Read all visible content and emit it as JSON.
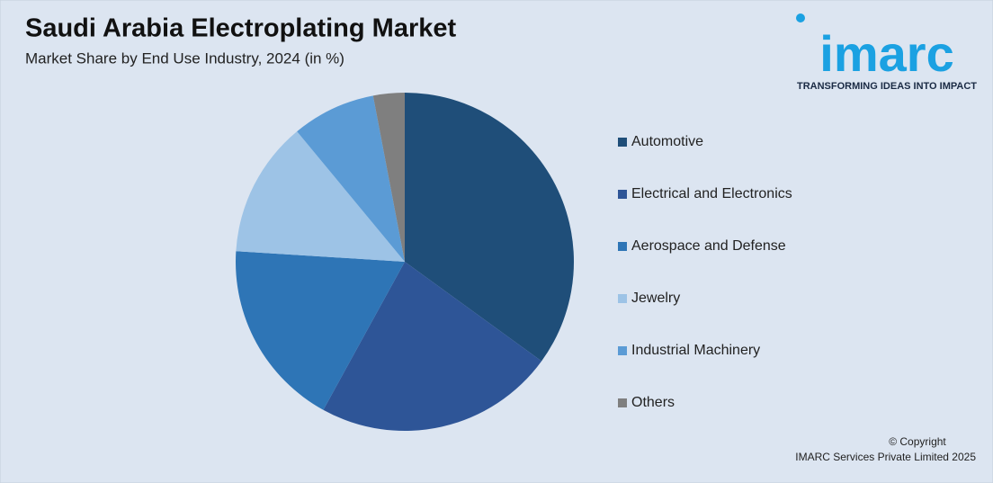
{
  "chart_data": {
    "type": "pie",
    "title": "Saudi Arabia Electroplating Market",
    "subtitle": "Market Share by End Use Industry, 2024 (in %)",
    "categories": [
      "Automotive",
      "Electrical and Electronics",
      "Aerospace and Defense",
      "Jewelry",
      "Industrial Machinery",
      "Others"
    ],
    "values": [
      35,
      23,
      18,
      13,
      8,
      3
    ],
    "colors": [
      "#1f4e79",
      "#2e5597",
      "#2e75b6",
      "#9dc3e6",
      "#5b9bd5",
      "#7f7f7f"
    ],
    "legend": "right"
  },
  "logo": {
    "name": "imarc",
    "tagline": "TRANSFORMING IDEAS INTO IMPACT"
  },
  "footer": {
    "copyright": "© Copyright",
    "owner": "IMARC Services Private Limited 2025"
  }
}
